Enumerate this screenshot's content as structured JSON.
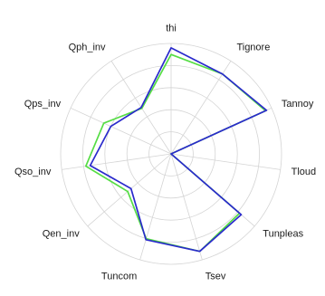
{
  "chart_data": {
    "type": "radar",
    "axes": [
      "thi",
      "Tignore",
      "Tannoy",
      "Tloud",
      "Tunpleas",
      "Tsev",
      "Tuncom",
      "Qen_inv",
      "Qso_inv",
      "Qps_inv",
      "Qph_inv"
    ],
    "rlim": [
      0,
      1
    ],
    "rings": 5,
    "grid": true,
    "series": [
      {
        "color": "#55dd44",
        "values": [
          0.9,
          0.86,
          0.94,
          0.0,
          0.82,
          0.92,
          0.8,
          0.52,
          0.78,
          0.67,
          0.49
        ]
      },
      {
        "color": "#2a2acc",
        "values": [
          0.96,
          0.86,
          0.95,
          0.0,
          0.84,
          0.92,
          0.81,
          0.48,
          0.74,
          0.6,
          0.5
        ]
      }
    ]
  }
}
